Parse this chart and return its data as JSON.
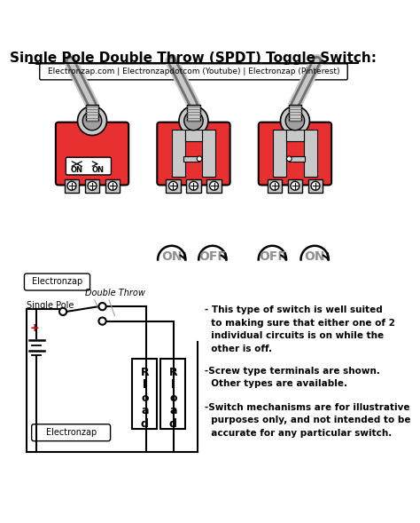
{
  "title": "Single Pole Double Throw (SPDT) Toggle Switch:",
  "subtitle": "Electronzap.com | Electronzapdotcom (Youtube) | Electronzap (Pinterest)",
  "bg_color": "#ffffff",
  "switch_red": "#e83030",
  "switch_gray": "#a0a0a0",
  "switch_dark_gray": "#707070",
  "lgray": "#c8c8c8",
  "text_color": "#000000",
  "on_off_color": "#909090",
  "red_plus": "#cc0000",
  "bullet1": "- This type of switch is well suited\n  to making sure that either one of 2\n  individual circuits is on while the\n  other is off.",
  "bullet2": "-Screw type terminals are shown.\n  Other types are available.",
  "bullet3": "-Switch mechanisms are for illustrative\n  purposes only, and not intended to be\n  accurate for any particular switch.",
  "label_electronzap": "Electronzap",
  "label_single_pole": "Single Pole",
  "label_double_throw": "Double Throw"
}
